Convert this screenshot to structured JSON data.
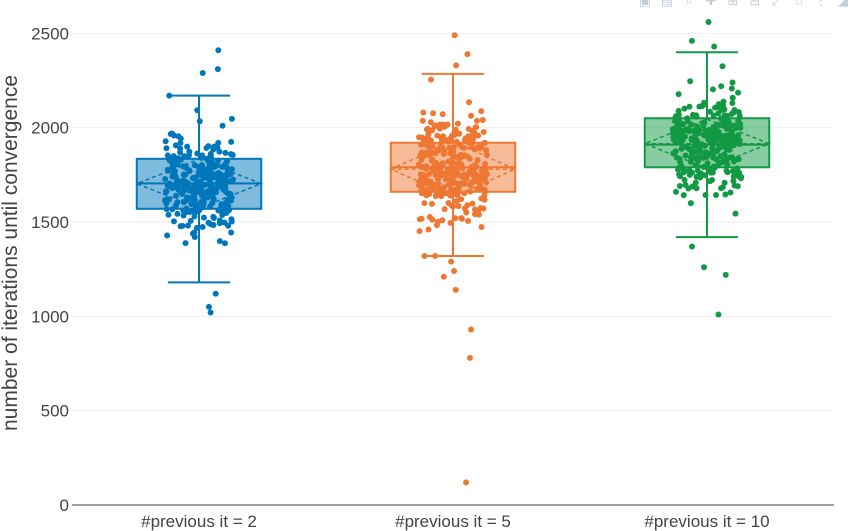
{
  "modebar": {
    "icons": [
      "camera-icon",
      "save-icon",
      "zoom-icon",
      "pan-icon",
      "zoom-in-icon",
      "zoom-out-icon",
      "autoscale-icon",
      "home-icon",
      "spike-icon",
      "hover-icon"
    ]
  },
  "chart_data": {
    "type": "box",
    "title": "",
    "xlabel": "",
    "ylabel": "number of iterations until convergence",
    "ylim": [
      0,
      2560
    ],
    "yticks": [
      0,
      500,
      1000,
      1500,
      2000,
      2500
    ],
    "grid": true,
    "legend": "none",
    "categories": [
      "#previous it = 2",
      "#previous it = 5",
      "#previous it = 10"
    ],
    "series": [
      {
        "color": "#0077bb",
        "whisker_low": 1180,
        "q1": 1570,
        "median": 1705,
        "q3": 1835,
        "whisker_high": 2170,
        "mean": 1703,
        "sd": 130,
        "n_points": 300,
        "outliers": [
          2410,
          2310,
          2290,
          1120,
          1050,
          1020
        ]
      },
      {
        "color": "#ee7733",
        "whisker_low": 1320,
        "q1": 1660,
        "median": 1790,
        "q3": 1920,
        "whisker_high": 2285,
        "mean": 1780,
        "sd": 145,
        "n_points": 300,
        "outliers": [
          2490,
          2390,
          2330,
          1290,
          1240,
          1210,
          1140,
          930,
          780,
          120
        ]
      },
      {
        "color": "#119944",
        "whisker_low": 1420,
        "q1": 1790,
        "median": 1910,
        "q3": 2050,
        "whisker_high": 2400,
        "mean": 1915,
        "sd": 130,
        "n_points": 300,
        "outliers": [
          2560,
          2460,
          2430,
          1370,
          1260,
          1220,
          1010
        ]
      }
    ]
  }
}
